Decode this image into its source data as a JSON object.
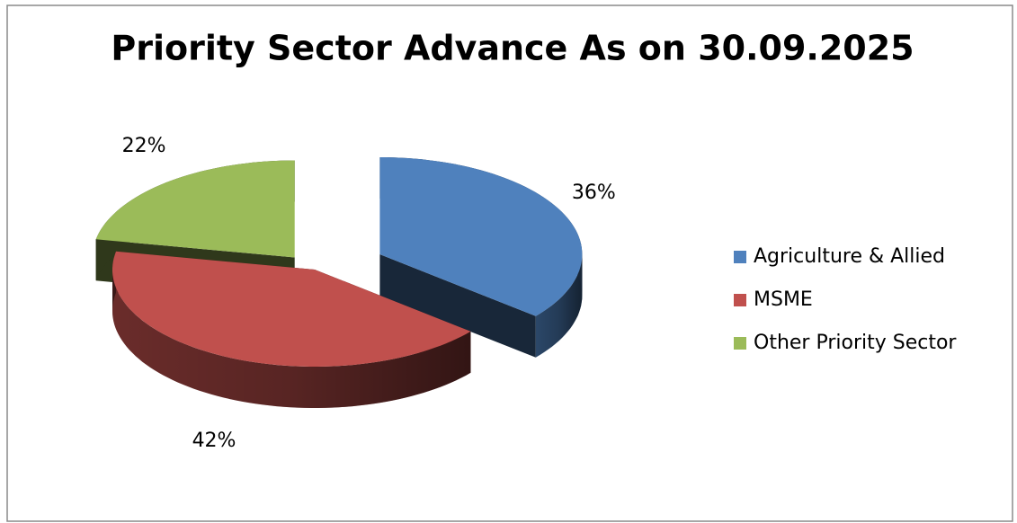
{
  "chart_data": {
    "type": "pie",
    "title": "Priority Sector Advance As on 30.09.2025",
    "categories": [
      "Agriculture & Allied",
      "MSME",
      "Other Priority Sector"
    ],
    "values": [
      36,
      42,
      22
    ],
    "value_labels": [
      "36%",
      "42%",
      "22%"
    ],
    "colors": [
      "#4f81bd",
      "#c0504d",
      "#9bbb59"
    ],
    "legend": "right"
  }
}
